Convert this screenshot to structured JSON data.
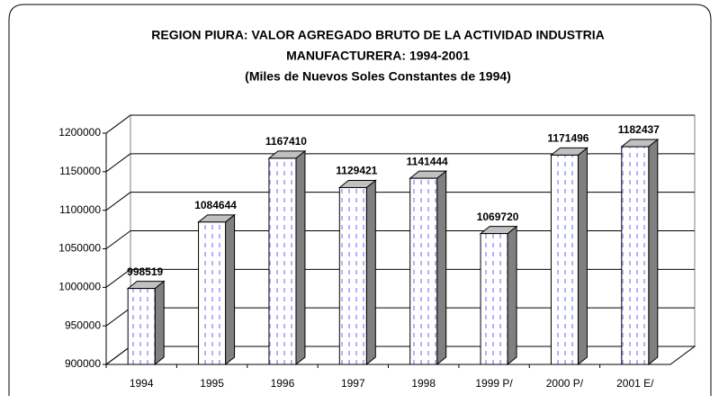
{
  "chart_data": {
    "type": "bar3d",
    "title": [
      "REGION PIURA: VALOR AGREGADO BRUTO DE LA ACTIVIDAD INDUSTRIA",
      "MANUFACTURERA: 1994-2001"
    ],
    "subtitle": "(Miles de Nuevos Soles Constantes de 1994)",
    "categories": [
      "1994",
      "1995",
      "1996",
      "1997",
      "1998",
      "1999 P/",
      "2000 P/",
      "2001 E/"
    ],
    "values": [
      998519,
      1084644,
      1167410,
      1129421,
      1141444,
      1069720,
      1171496,
      1182437
    ],
    "color": "#9999ff",
    "ylim": [
      900000,
      1200000
    ],
    "yticks": [
      900000,
      950000,
      1000000,
      1050000,
      1100000,
      1150000,
      1200000
    ],
    "grid": true
  }
}
